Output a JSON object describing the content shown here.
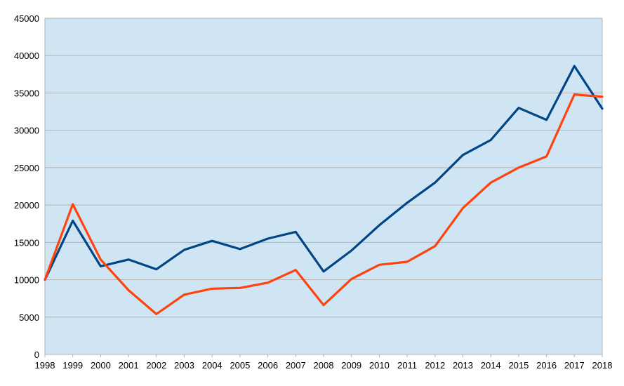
{
  "chart_data": {
    "type": "line",
    "title": "",
    "xlabel": "",
    "ylabel": "",
    "x": [
      "1998",
      "1999",
      "2000",
      "2001",
      "2002",
      "2003",
      "2004",
      "2005",
      "2006",
      "2007",
      "2008",
      "2009",
      "2010",
      "2011",
      "2012",
      "2013",
      "2014",
      "2015",
      "2016",
      "2017",
      "2018"
    ],
    "ylim": [
      0,
      45000
    ],
    "yticks": [
      0,
      5000,
      10000,
      15000,
      20000,
      25000,
      30000,
      35000,
      40000,
      45000
    ],
    "grid": true,
    "legend": "none",
    "plot_background": "#cfe5f3",
    "series": [
      {
        "color": "#004586",
        "values": [
          10000,
          17900,
          11800,
          12700,
          11400,
          14000,
          15200,
          14100,
          15500,
          16400,
          11100,
          13900,
          17300,
          20300,
          23000,
          26700,
          28700,
          33000,
          31400,
          38600,
          32900
        ]
      },
      {
        "color": "#ff420e",
        "values": [
          10000,
          20100,
          12700,
          8600,
          5400,
          8000,
          8800,
          8900,
          9600,
          11300,
          6600,
          10100,
          12000,
          12400,
          14500,
          19600,
          23000,
          25000,
          26500,
          34800,
          34500
        ]
      }
    ]
  }
}
